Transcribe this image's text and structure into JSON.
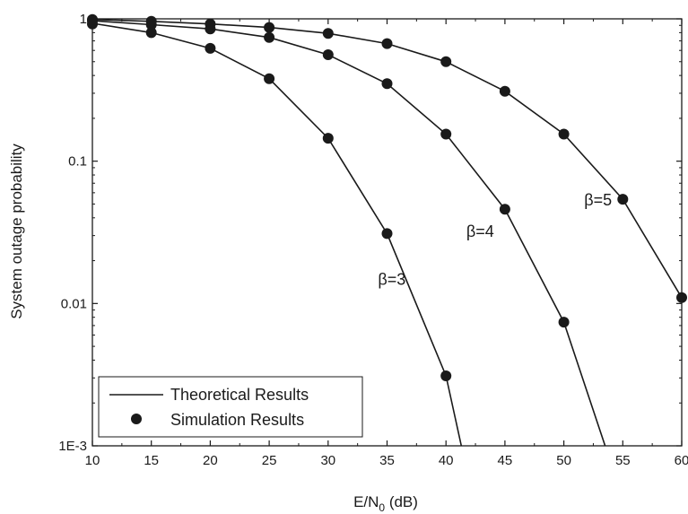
{
  "chart_data": {
    "type": "line",
    "title": "",
    "xlabel": "E/N0 (dB)",
    "xlabel_parts": {
      "main": "E/N",
      "sub": "0",
      "suffix": " (dB)"
    },
    "ylabel": "System outage probability",
    "xlim": [
      10,
      60
    ],
    "ylim": [
      0.001,
      1
    ],
    "yscale": "log",
    "grid": false,
    "legend_position": "bottom-left",
    "x_ticks": [
      "10",
      "15",
      "20",
      "25",
      "30",
      "35",
      "40",
      "45",
      "50",
      "55",
      "60"
    ],
    "y_ticks": [
      {
        "value": 1,
        "label": "1"
      },
      {
        "value": 0.1,
        "label": "0.1"
      },
      {
        "value": 0.01,
        "label": "0.01"
      },
      {
        "value": 0.001,
        "label": "1E-3"
      }
    ],
    "legend": [
      {
        "label": "Theoretical Results",
        "marker": "line"
      },
      {
        "label": "Simulation Results",
        "marker": "dot"
      }
    ],
    "series": [
      {
        "label": "β=3",
        "theory_x": [
          10,
          15,
          20,
          25,
          30,
          35,
          40,
          41.3
        ],
        "theory_y": [
          0.93,
          0.8,
          0.62,
          0.38,
          0.145,
          0.031,
          0.0031,
          0.001
        ],
        "sim_x": [
          10,
          15,
          20,
          25,
          30,
          35,
          40
        ],
        "sim_y": [
          0.92,
          0.8,
          0.62,
          0.38,
          0.145,
          0.031,
          0.0031
        ],
        "label_at": [
          35.4,
          0.0135
        ]
      },
      {
        "label": "β=4",
        "theory_x": [
          10,
          15,
          20,
          25,
          30,
          35,
          40,
          45,
          50,
          53.5
        ],
        "theory_y": [
          0.97,
          0.91,
          0.85,
          0.74,
          0.56,
          0.35,
          0.155,
          0.046,
          0.0074,
          0.001
        ],
        "sim_x": [
          10,
          15,
          20,
          25,
          30,
          35,
          40,
          45,
          50
        ],
        "sim_y": [
          0.97,
          0.91,
          0.85,
          0.74,
          0.56,
          0.35,
          0.155,
          0.046,
          0.0074
        ],
        "label_at": [
          42.9,
          0.0295
        ]
      },
      {
        "label": "β=5",
        "theory_x": [
          10,
          15,
          20,
          25,
          30,
          35,
          40,
          45,
          50,
          55,
          60
        ],
        "theory_y": [
          0.99,
          0.96,
          0.92,
          0.87,
          0.79,
          0.67,
          0.5,
          0.31,
          0.155,
          0.054,
          0.011
        ],
        "sim_x": [
          10,
          15,
          20,
          25,
          30,
          35,
          40,
          45,
          50,
          55,
          60
        ],
        "sim_y": [
          0.99,
          0.96,
          0.92,
          0.87,
          0.79,
          0.67,
          0.5,
          0.31,
          0.155,
          0.054,
          0.011
        ],
        "label_at": [
          52.9,
          0.049
        ]
      }
    ]
  }
}
